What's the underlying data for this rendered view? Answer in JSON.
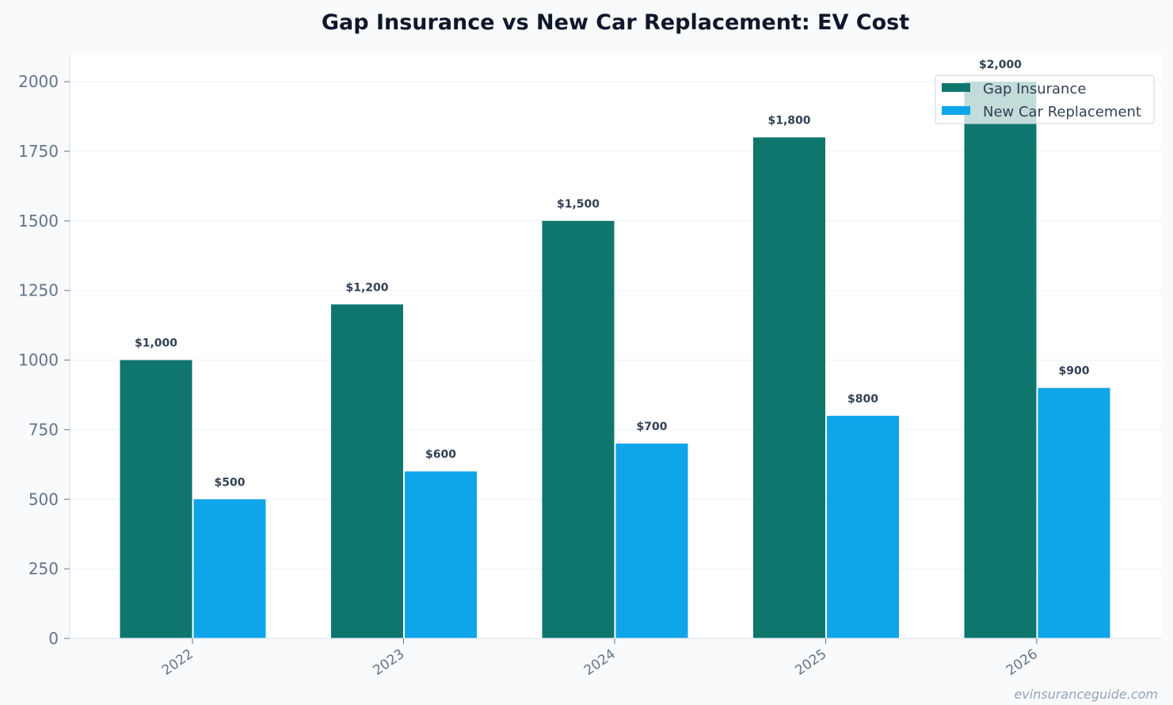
{
  "chart_data": {
    "type": "bar",
    "title": "Gap Insurance vs New Car Replacement: EV Cost",
    "xlabel": "",
    "ylabel": "",
    "categories": [
      "2022",
      "2023",
      "2024",
      "2025",
      "2026"
    ],
    "series": [
      {
        "name": "Gap Insurance",
        "values": [
          1000,
          1200,
          1500,
          1800,
          2000
        ],
        "labels": [
          "$1,000",
          "$1,200",
          "$1,500",
          "$1,800",
          "$2,000"
        ],
        "color": "#0f766e"
      },
      {
        "name": "New Car Replacement",
        "values": [
          500,
          600,
          700,
          800,
          900
        ],
        "labels": [
          "$500",
          "$600",
          "$700",
          "$800",
          "$900"
        ],
        "color": "#0ea5e9"
      }
    ],
    "ylim": [
      0,
      2100
    ],
    "yticks": [
      0,
      250,
      500,
      750,
      1000,
      1250,
      1500,
      1750,
      2000
    ],
    "grid": true,
    "legend": "top-right",
    "watermark": "evinsuranceguide.com"
  }
}
